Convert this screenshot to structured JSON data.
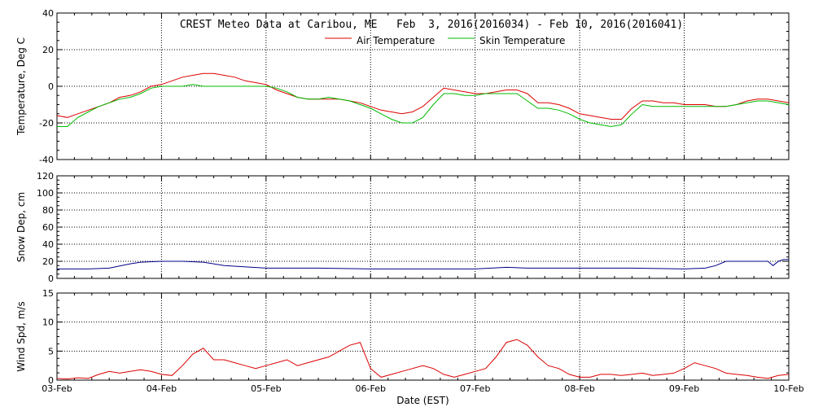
{
  "chart_data": {
    "type": "line",
    "title": "CREST Meteo Data at Caribou, ME   Feb  3, 2016(2016034) - Feb 10, 2016(2016041)",
    "xlabel": "Date (EST)",
    "x_ticks": [
      "03-Feb",
      "04-Feb",
      "05-Feb",
      "06-Feb",
      "07-Feb",
      "08-Feb",
      "09-Feb",
      "10-Feb"
    ],
    "x_range_days": [
      0,
      7
    ],
    "grid": true,
    "legend_position": "top-center",
    "panels": [
      {
        "id": "temperature",
        "ylabel": "Temperature, Deg C",
        "ylim": [
          -40,
          40
        ],
        "y_ticks": [
          -40,
          -20,
          0,
          20,
          40
        ],
        "series": [
          {
            "name": "Air Temperature",
            "color": "#dd0000",
            "x": [
              0,
              0.1,
              0.2,
              0.3,
              0.4,
              0.5,
              0.6,
              0.7,
              0.8,
              0.9,
              1.0,
              1.1,
              1.2,
              1.3,
              1.4,
              1.5,
              1.6,
              1.7,
              1.8,
              1.9,
              2.0,
              2.1,
              2.2,
              2.3,
              2.4,
              2.5,
              2.6,
              2.7,
              2.8,
              2.9,
              3.0,
              3.1,
              3.2,
              3.3,
              3.4,
              3.5,
              3.6,
              3.7,
              3.8,
              3.9,
              4.0,
              4.1,
              4.2,
              4.3,
              4.4,
              4.5,
              4.6,
              4.7,
              4.8,
              4.9,
              5.0,
              5.1,
              5.2,
              5.3,
              5.4,
              5.5,
              5.6,
              5.7,
              5.8,
              5.9,
              6.0,
              6.1,
              6.2,
              6.3,
              6.4,
              6.5,
              6.6,
              6.7,
              6.8,
              6.9,
              7.0
            ],
            "values": [
              -16,
              -17,
              -15,
              -13,
              -11,
              -9,
              -6,
              -5,
              -3,
              0,
              1,
              3,
              5,
              6,
              7,
              7,
              6,
              5,
              3,
              2,
              1,
              -2,
              -4,
              -6,
              -7,
              -7,
              -7,
              -7,
              -8,
              -9,
              -11,
              -13,
              -14,
              -15,
              -14,
              -11,
              -6,
              -1,
              -2,
              -3,
              -4,
              -4,
              -3,
              -2,
              -2,
              -4,
              -9,
              -9,
              -10,
              -12,
              -15,
              -16,
              -17,
              -18,
              -18,
              -12,
              -8,
              -8,
              -9,
              -9,
              -10,
              -10,
              -10,
              -11,
              -11,
              -10,
              -8,
              -7,
              -7,
              -8,
              -9
            ]
          },
          {
            "name": "Skin Temperature",
            "color": "#00bb00",
            "x": [
              0,
              0.1,
              0.2,
              0.3,
              0.4,
              0.5,
              0.6,
              0.7,
              0.8,
              0.9,
              1.0,
              1.1,
              1.2,
              1.3,
              1.4,
              1.5,
              1.6,
              1.7,
              1.8,
              1.9,
              2.0,
              2.1,
              2.2,
              2.3,
              2.4,
              2.5,
              2.6,
              2.7,
              2.8,
              2.9,
              3.0,
              3.1,
              3.2,
              3.3,
              3.4,
              3.5,
              3.6,
              3.7,
              3.8,
              3.9,
              4.0,
              4.1,
              4.2,
              4.3,
              4.4,
              4.5,
              4.6,
              4.7,
              4.8,
              4.9,
              5.0,
              5.1,
              5.2,
              5.3,
              5.4,
              5.5,
              5.6,
              5.7,
              5.8,
              5.9,
              6.0,
              6.1,
              6.2,
              6.3,
              6.4,
              6.5,
              6.6,
              6.7,
              6.8,
              6.9,
              7.0
            ],
            "values": [
              -22,
              -22,
              -17,
              -14,
              -11,
              -9,
              -7,
              -6,
              -4,
              -1,
              0,
              0,
              0,
              1,
              0,
              0,
              0,
              0,
              0,
              0,
              0,
              -1,
              -3,
              -6,
              -7,
              -7,
              -6,
              -7,
              -8,
              -10,
              -12,
              -15,
              -18,
              -20,
              -20,
              -17,
              -10,
              -4,
              -4,
              -5,
              -5,
              -4,
              -4,
              -4,
              -4,
              -8,
              -12,
              -12,
              -13,
              -15,
              -18,
              -20,
              -21,
              -22,
              -21,
              -15,
              -10,
              -11,
              -11,
              -11,
              -11,
              -11,
              -11,
              -11,
              -11,
              -10,
              -9,
              -8,
              -8,
              -9,
              -10
            ]
          }
        ]
      },
      {
        "id": "snow-depth",
        "ylabel": "Snow Dep, cm",
        "ylim": [
          0,
          120
        ],
        "y_ticks": [
          0,
          20,
          40,
          60,
          80,
          100,
          120
        ],
        "series": [
          {
            "name": "",
            "color": "#000088",
            "x": [
              0,
              0.3,
              0.5,
              0.7,
              0.8,
              1.0,
              1.2,
              1.4,
              1.6,
              2.0,
              2.5,
              3.0,
              3.5,
              4.0,
              4.3,
              4.5,
              5.0,
              5.5,
              6.0,
              6.2,
              6.3,
              6.4,
              6.6,
              6.8,
              6.85,
              6.9,
              6.95,
              7.0
            ],
            "values": [
              11,
              11,
              12,
              17,
              19,
              20,
              20,
              19,
              15,
              12,
              12,
              11,
              11,
              11,
              13,
              12,
              12,
              12,
              11,
              12,
              15,
              20,
              20,
              20,
              15,
              20,
              22,
              22
            ]
          }
        ]
      },
      {
        "id": "wind-speed",
        "ylabel": "Wind Spd, m/s",
        "ylim": [
          0,
          15
        ],
        "y_ticks": [
          0,
          5,
          10,
          15
        ],
        "series": [
          {
            "name": "",
            "color": "#dd0000",
            "x": [
              0,
              0.1,
              0.2,
              0.3,
              0.4,
              0.5,
              0.6,
              0.7,
              0.8,
              0.9,
              1.0,
              1.1,
              1.2,
              1.3,
              1.4,
              1.5,
              1.6,
              1.7,
              1.8,
              1.9,
              2.0,
              2.1,
              2.2,
              2.3,
              2.4,
              2.5,
              2.6,
              2.7,
              2.8,
              2.9,
              3.0,
              3.1,
              3.2,
              3.3,
              3.4,
              3.5,
              3.6,
              3.7,
              3.8,
              3.9,
              4.0,
              4.1,
              4.2,
              4.3,
              4.4,
              4.5,
              4.6,
              4.7,
              4.8,
              4.9,
              5.0,
              5.1,
              5.2,
              5.3,
              5.4,
              5.5,
              5.6,
              5.7,
              5.8,
              5.9,
              6.0,
              6.1,
              6.2,
              6.3,
              6.4,
              6.5,
              6.6,
              6.7,
              6.8,
              6.9,
              7.0
            ],
            "values": [
              0.3,
              0.2,
              0.4,
              0.3,
              1.0,
              1.5,
              1.2,
              1.5,
              1.8,
              1.5,
              1.0,
              0.8,
              2.5,
              4.5,
              5.5,
              3.5,
              3.5,
              3.0,
              2.5,
              2.0,
              2.5,
              3.0,
              3.5,
              2.5,
              3.0,
              3.5,
              4.0,
              5.0,
              6.0,
              6.5,
              2.0,
              0.5,
              1.0,
              1.5,
              2.0,
              2.5,
              2.0,
              1.0,
              0.5,
              1.0,
              1.5,
              2.0,
              4.0,
              6.5,
              7.0,
              6.0,
              4.0,
              2.5,
              2.0,
              1.0,
              0.5,
              0.5,
              1.0,
              1.0,
              0.8,
              1.0,
              1.2,
              0.8,
              1.0,
              1.2,
              2.0,
              3.0,
              2.5,
              2.0,
              1.2,
              1.0,
              0.8,
              0.5,
              0.3,
              0.8,
              1.0
            ]
          }
        ]
      }
    ]
  }
}
